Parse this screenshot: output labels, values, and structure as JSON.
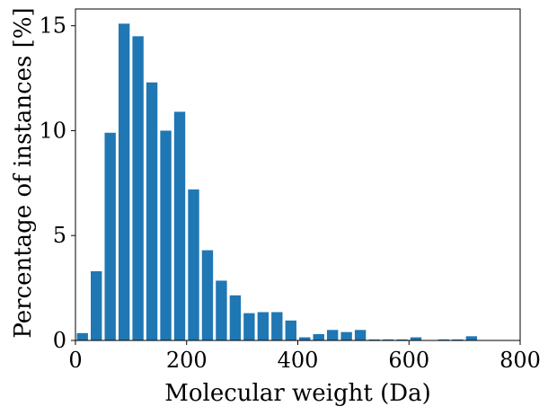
{
  "chart_data": {
    "type": "bar",
    "title": "",
    "xlabel": "Molecular weight (Da)",
    "ylabel": "Percentage of instances [%]",
    "xlim": [
      0,
      800
    ],
    "ylim": [
      0,
      15.8
    ],
    "bin_width": 25,
    "x": [
      0,
      25,
      50,
      75,
      100,
      125,
      150,
      175,
      200,
      225,
      250,
      275,
      300,
      325,
      350,
      375,
      400,
      425,
      450,
      475,
      500,
      525,
      550,
      575,
      600,
      625,
      650,
      675,
      700,
      725,
      750,
      775
    ],
    "values": [
      0.35,
      3.3,
      9.9,
      15.1,
      14.5,
      12.3,
      10.0,
      10.9,
      7.2,
      4.3,
      2.85,
      2.15,
      1.3,
      1.35,
      1.35,
      0.95,
      0.15,
      0.3,
      0.5,
      0.4,
      0.5,
      0.05,
      0.05,
      0.05,
      0.15,
      0.0,
      0.05,
      0.05,
      0.2,
      0.0,
      0.0,
      0.0
    ],
    "xticks": [
      0,
      200,
      400,
      600,
      800
    ],
    "yticks": [
      0,
      5,
      10,
      15
    ],
    "grid": false,
    "color": "#1f77b4"
  }
}
